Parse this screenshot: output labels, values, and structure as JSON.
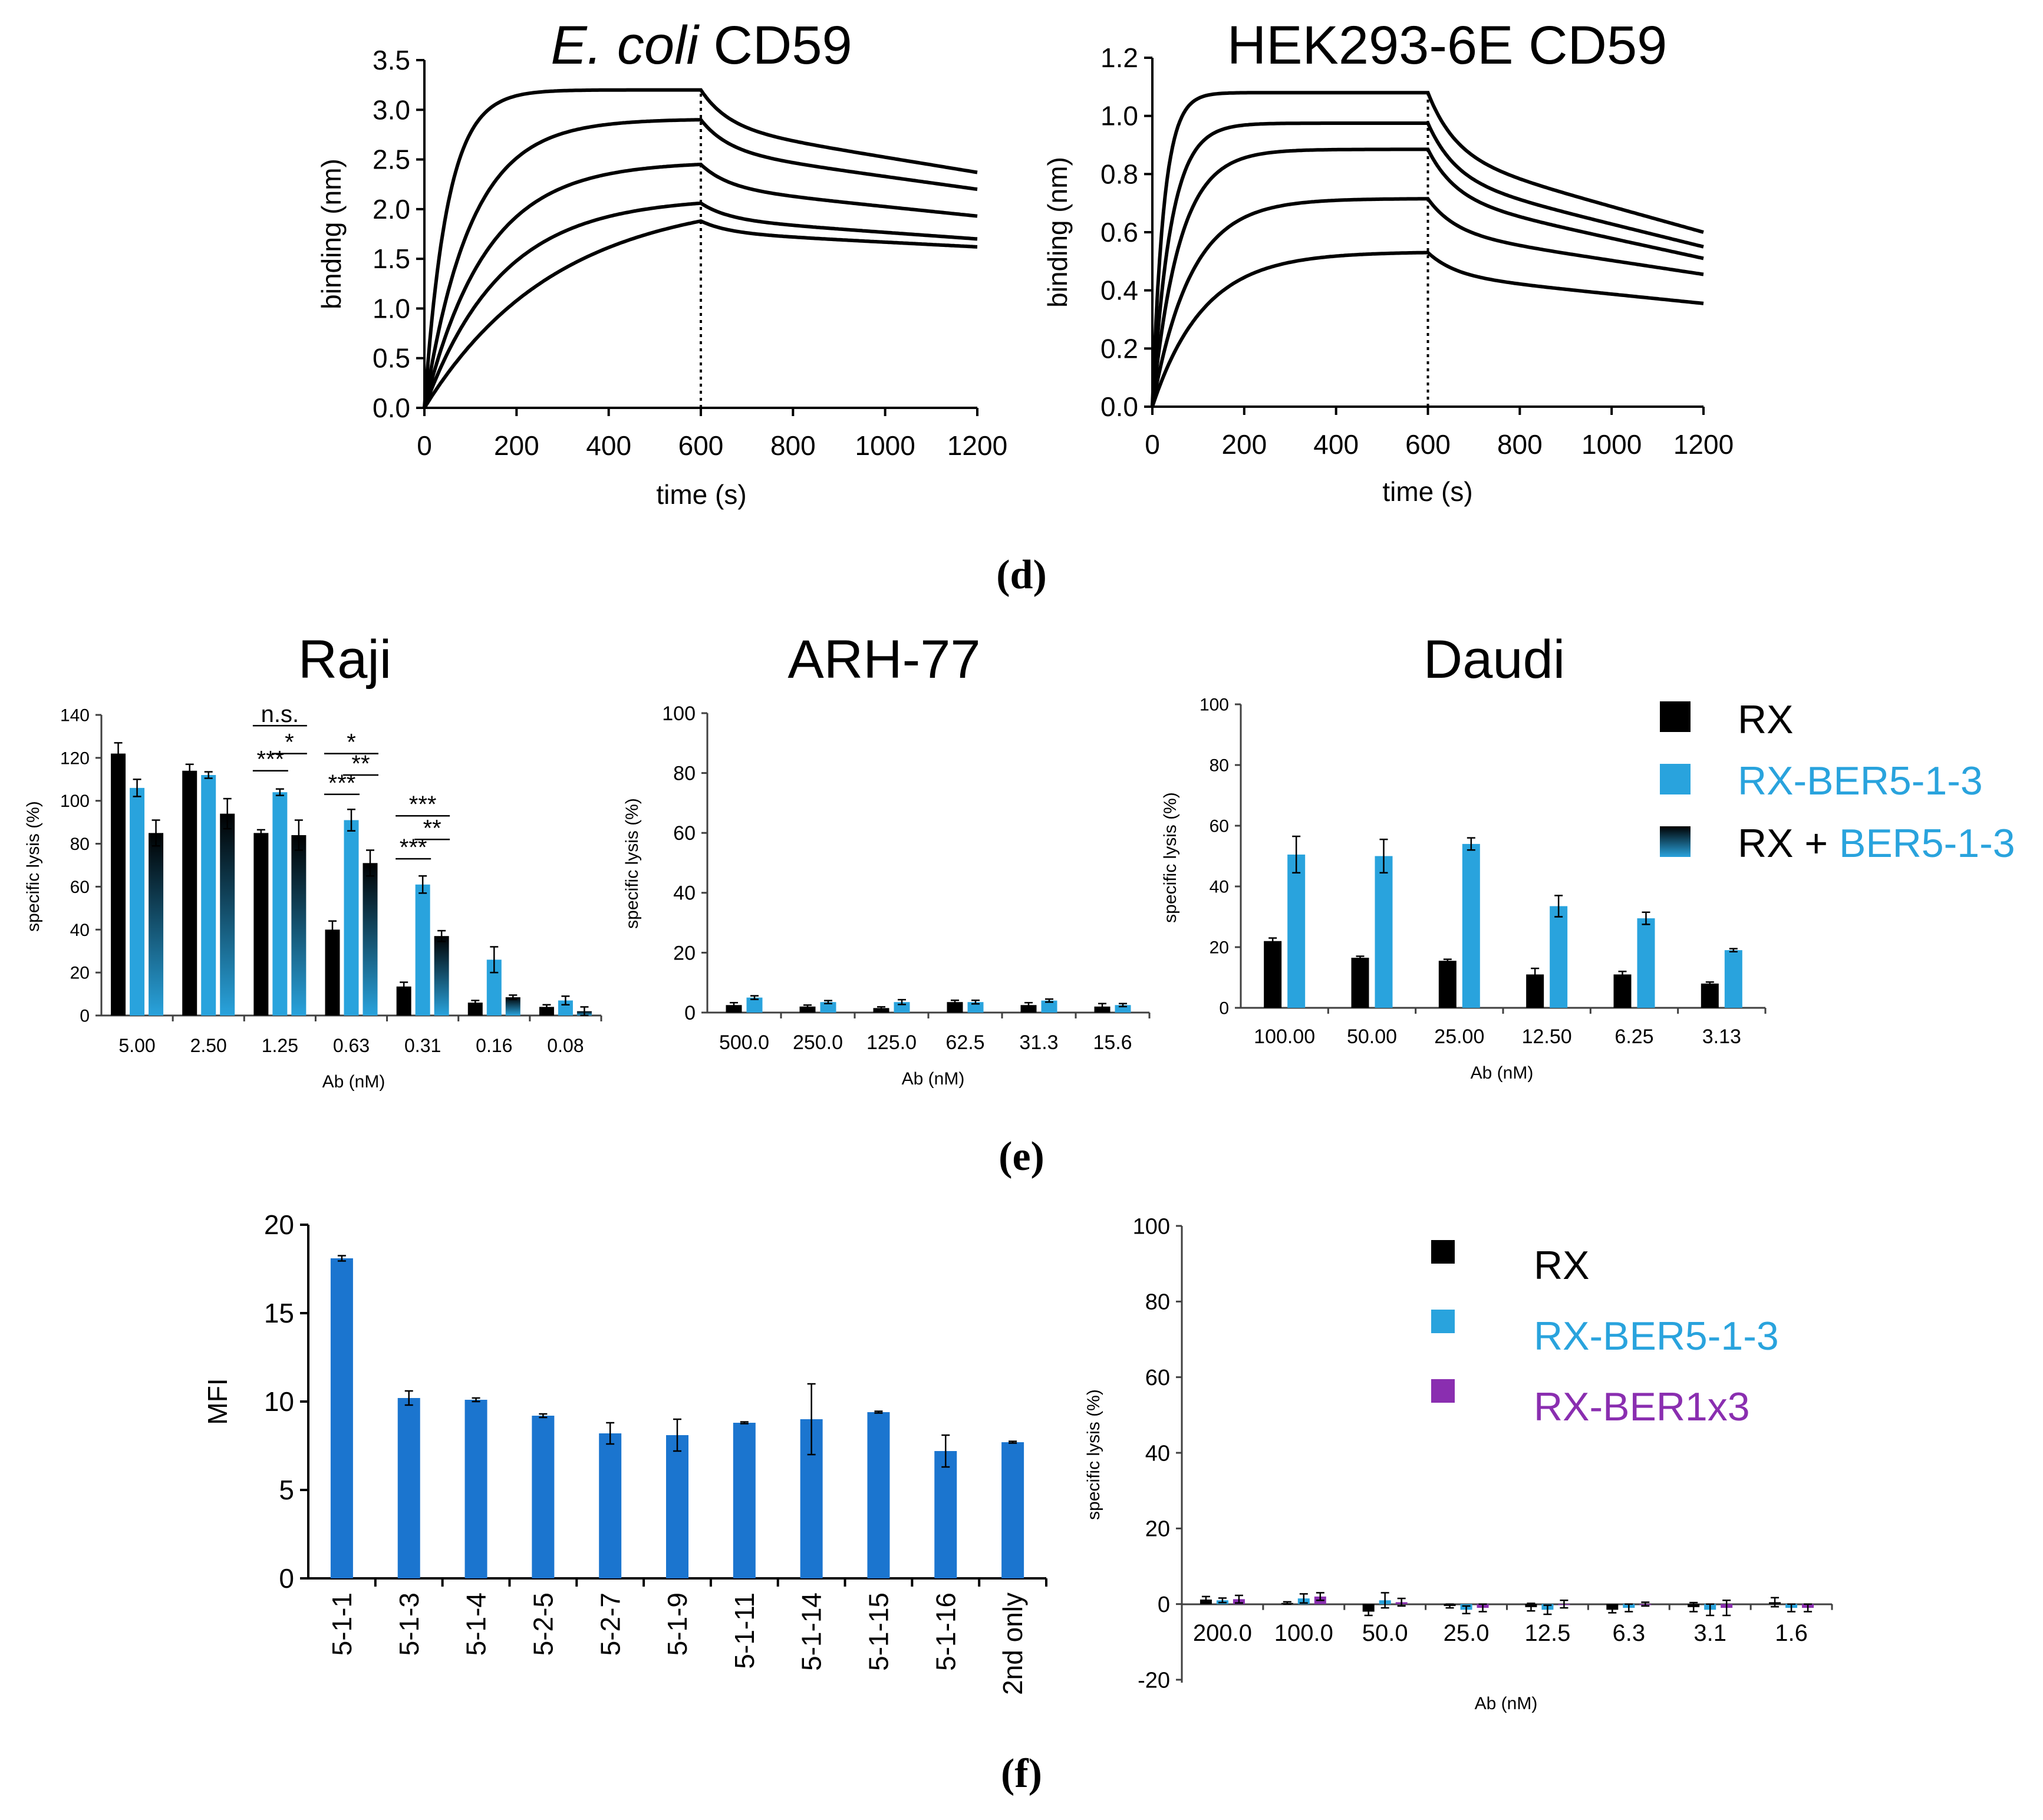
{
  "colors": {
    "black": "#000000",
    "blue": "#29a3dd",
    "darkblue": "#1b75cf",
    "purple": "#8a2eb0",
    "axis": "#404040"
  },
  "panel_labels": {
    "d": "(d)",
    "e": "(e)",
    "f": "(f)"
  },
  "chart_data": [
    {
      "id": "ecoli",
      "type": "line",
      "title_italic": "E. coli",
      "title_rest": " CD59",
      "xlabel": "time (s)",
      "ylabel": "binding (nm)",
      "xlim": [
        0,
        1200
      ],
      "ylim": [
        0,
        3.5
      ],
      "xticks": [
        0,
        200,
        400,
        600,
        800,
        1000,
        1200
      ],
      "yticks": [
        "0.0",
        "0.5",
        "1.0",
        "1.5",
        "2.0",
        "2.5",
        "3.0",
        "3.5"
      ],
      "dissociation_start": 600,
      "series": [
        {
          "plateau_at_600": 3.2,
          "k_on": 0.02,
          "end_1200": 2.37
        },
        {
          "plateau_at_600": 2.9,
          "k_on": 0.01,
          "end_1200": 2.2
        },
        {
          "plateau_at_600": 2.45,
          "k_on": 0.0075,
          "end_1200": 1.93
        },
        {
          "plateau_at_600": 2.06,
          "k_on": 0.006,
          "end_1200": 1.7
        },
        {
          "plateau_at_600": 1.88,
          "k_on": 0.0035,
          "end_1200": 1.62
        }
      ]
    },
    {
      "id": "hek",
      "type": "line",
      "title": "HEK293-6E CD59",
      "xlabel": "time (s)",
      "ylabel": "binding (nm)",
      "xlim": [
        0,
        1200
      ],
      "ylim": [
        0,
        1.2
      ],
      "xticks": [
        0,
        200,
        400,
        600,
        800,
        1000,
        1200
      ],
      "yticks": [
        "0.0",
        "0.2",
        "0.4",
        "0.6",
        "0.8",
        "1.0",
        "1.2"
      ],
      "dissociation_start": 600,
      "series": [
        {
          "plateau_at_600": 1.08,
          "k_on": 0.04,
          "end_1200": 0.6
        },
        {
          "plateau_at_600": 0.975,
          "k_on": 0.025,
          "end_1200": 0.55
        },
        {
          "plateau_at_600": 0.885,
          "k_on": 0.017,
          "end_1200": 0.51
        },
        {
          "plateau_at_600": 0.715,
          "k_on": 0.012,
          "end_1200": 0.455
        },
        {
          "plateau_at_600": 0.53,
          "k_on": 0.009,
          "end_1200": 0.355
        }
      ]
    },
    {
      "id": "raji",
      "type": "bar",
      "title": "Raji",
      "xlabel": "Ab (nM)",
      "ylabel": "specific lysis (%)",
      "ylim": [
        0,
        140
      ],
      "yticks": [
        "0",
        "20",
        "40",
        "60",
        "80",
        "100",
        "120",
        "140"
      ],
      "categories": [
        "5.00",
        "2.50",
        "1.25",
        "0.63",
        "0.31",
        "0.16",
        "0.08"
      ],
      "series": [
        {
          "name": "RX",
          "color": "black",
          "values": [
            122,
            114,
            85,
            40,
            13.5,
            6,
            4
          ],
          "errors": [
            5,
            3,
            1.5,
            4,
            2,
            1,
            1
          ]
        },
        {
          "name": "RX-BER5-1-3",
          "color": "blue",
          "values": [
            106,
            112,
            104,
            91,
            61,
            26,
            7
          ],
          "errors": [
            4,
            1.5,
            1.5,
            5,
            4,
            6,
            2
          ]
        },
        {
          "name": "RX + BER5-1-3",
          "color": "gradient",
          "values": [
            85,
            94,
            84,
            71,
            37,
            8.5,
            2
          ],
          "errors": [
            6,
            7,
            7,
            6,
            2.5,
            1,
            2
          ]
        }
      ],
      "significance": [
        {
          "label": "n.s."
        },
        {
          "label": "*"
        },
        {
          "label": "***"
        },
        {
          "label": "*"
        },
        {
          "label": "**"
        },
        {
          "label": "***"
        },
        {
          "label": "***"
        },
        {
          "label": "**"
        },
        {
          "label": "***"
        }
      ]
    },
    {
      "id": "arh77",
      "type": "bar",
      "title": "ARH-77",
      "xlabel": "Ab (nM)",
      "ylabel": "specific lysis (%)",
      "ylim": [
        0,
        100
      ],
      "yticks": [
        "0",
        "20",
        "40",
        "60",
        "80",
        "100"
      ],
      "categories": [
        "500.0",
        "250.0",
        "125.0",
        "62.5",
        "31.3",
        "15.6"
      ],
      "series": [
        {
          "name": "RX",
          "color": "black",
          "values": [
            2.5,
            2,
            1.5,
            3.5,
            2.5,
            2
          ],
          "errors": [
            0.8,
            0.5,
            0.4,
            0.6,
            0.8,
            1
          ]
        },
        {
          "name": "RX-BER5-1-3",
          "color": "blue",
          "values": [
            5,
            3.5,
            3.5,
            3.5,
            4,
            2.5
          ],
          "errors": [
            0.6,
            0.5,
            0.8,
            0.6,
            0.5,
            0.5
          ]
        }
      ]
    },
    {
      "id": "daudi",
      "type": "bar",
      "title": "Daudi",
      "xlabel": "Ab (nM)",
      "ylabel": "specific lysis (%)",
      "ylim": [
        0,
        100
      ],
      "yticks": [
        "0",
        "20",
        "40",
        "60",
        "80",
        "100"
      ],
      "categories": [
        "100.00",
        "50.00",
        "25.00",
        "12.50",
        "6.25",
        "3.13"
      ],
      "series": [
        {
          "name": "RX",
          "color": "black",
          "values": [
            22,
            16.5,
            15.5,
            11,
            11,
            8
          ],
          "errors": [
            1,
            0.5,
            0.5,
            2,
            1,
            0.5
          ]
        },
        {
          "name": "RX-BER5-1-3",
          "color": "blue",
          "values": [
            50.5,
            50,
            54,
            33.5,
            29.5,
            19
          ],
          "errors": [
            6,
            5.5,
            2,
            3.5,
            2,
            0.5
          ]
        }
      ],
      "legend": {
        "rx": "RX",
        "ber": "RX-BER5-1-3",
        "combo_prefix": "RX + ",
        "combo_suffix": "BER5-1-3"
      }
    },
    {
      "id": "mfi",
      "type": "bar",
      "title": "",
      "xlabel": "",
      "ylabel": "MFI",
      "ylim": [
        0,
        20
      ],
      "yticks": [
        "0",
        "5",
        "10",
        "15",
        "20"
      ],
      "categories": [
        "5-1-1",
        "5-1-3",
        "5-1-4",
        "5-2-5",
        "5-2-7",
        "5-1-9",
        "5-1-11",
        "5-1-14",
        "5-1-15",
        "5-1-16",
        "2nd only"
      ],
      "series": [
        {
          "name": "MFI",
          "color": "darkblue",
          "values": [
            18.1,
            10.2,
            10.1,
            9.2,
            8.2,
            8.1,
            8.8,
            9.0,
            9.4,
            7.2,
            7.7
          ],
          "errors": [
            0.15,
            0.4,
            0.1,
            0.1,
            0.6,
            0.9,
            0.05,
            2.0,
            0.05,
            0.9,
            0.05
          ]
        }
      ]
    },
    {
      "id": "lysis_f",
      "type": "bar",
      "title": "",
      "xlabel": "Ab (nM)",
      "ylabel": "specific lysis (%)",
      "ylim": [
        -20,
        100
      ],
      "yticks": [
        "-20",
        "0",
        "20",
        "40",
        "60",
        "80",
        "100"
      ],
      "categories": [
        "200.0",
        "100.0",
        "50.0",
        "25.0",
        "12.5",
        "6.3",
        "3.1",
        "1.6"
      ],
      "series": [
        {
          "name": "RX",
          "color": "black",
          "values": [
            1.2,
            0.3,
            -2,
            -0.5,
            -0.8,
            -1.5,
            -0.8,
            0.5
          ],
          "errors": [
            0.8,
            0.3,
            1,
            0.5,
            1,
            0.8,
            1.2,
            1.2
          ]
        },
        {
          "name": "RX-BER5-1-3",
          "color": "blue",
          "values": [
            1,
            1.5,
            1,
            -1.5,
            -1.5,
            -1,
            -1.5,
            -1
          ],
          "errors": [
            0.6,
            1.2,
            2,
            1,
            1.2,
            1,
            1.5,
            1
          ]
        },
        {
          "name": "RX-BER1x3",
          "color": "purple",
          "values": [
            1.3,
            2,
            0.5,
            -1,
            0,
            0,
            -1,
            -1
          ],
          "errors": [
            1,
            1,
            1,
            1,
            1,
            0.5,
            2,
            1
          ]
        }
      ],
      "legend": {
        "rx": "RX",
        "ber": "RX-BER5-1-3",
        "ber1x3": "RX-BER1x3"
      }
    }
  ]
}
